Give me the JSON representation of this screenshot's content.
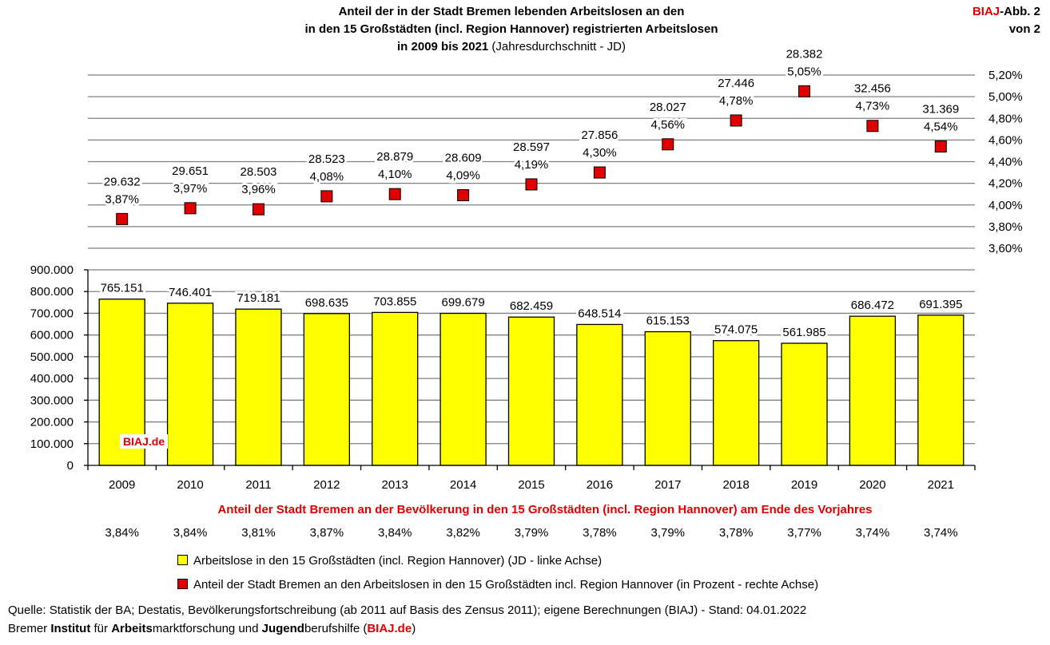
{
  "header": {
    "title_line1": "Anteil der in der Stadt Bremen lebenden Arbeitslosen an den",
    "title_line2": "in den 15 Großstädten (incl. Region Hannover) registrierten Arbeitslosen",
    "title_line3_bold": "in 2009 bis 2021",
    "title_line3_normal": " (Jahresdurchschnitt - JD)",
    "abb_brand": "BIAJ",
    "abb_label": "-Abb. 2",
    "abb_of": "von 2"
  },
  "chart_data": {
    "type": "bar",
    "categories": [
      "2009",
      "2010",
      "2011",
      "2012",
      "2013",
      "2014",
      "2015",
      "2016",
      "2017",
      "2018",
      "2019",
      "2020",
      "2021"
    ],
    "series": [
      {
        "name": "Arbeitslose in den 15 Großstädten (incl. Region Hannover) (JD - linke Achse)",
        "type": "bar",
        "axis": "left",
        "color": "#ffff00",
        "values": [
          765151,
          746401,
          719181,
          698635,
          703855,
          699679,
          682459,
          648514,
          615153,
          574075,
          561985,
          686472,
          691395
        ],
        "labels": [
          "765.151",
          "746.401",
          "719.181",
          "698.635",
          "703.855",
          "699.679",
          "682.459",
          "648.514",
          "615.153",
          "574.075",
          "561.985",
          "686.472",
          "691.395"
        ]
      },
      {
        "name": "Anteil der Stadt Bremen an den Arbeitslosen in den 15 Großstädten incl. Region Hannover (in Prozent - rechte Achse)",
        "type": "scatter",
        "axis": "right",
        "color": "#e00000",
        "values": [
          3.87,
          3.97,
          3.96,
          4.08,
          4.1,
          4.09,
          4.19,
          4.3,
          4.56,
          4.78,
          5.05,
          4.73,
          4.54
        ],
        "labels": [
          "3,87%",
          "3,97%",
          "3,96%",
          "4,08%",
          "4,10%",
          "4,09%",
          "4,19%",
          "4,30%",
          "4,56%",
          "4,78%",
          "5,05%",
          "4,73%",
          "4,54%"
        ],
        "counts": [
          "29.632",
          "29.651",
          "28.503",
          "28.523",
          "28.879",
          "28.609",
          "28.597",
          "27.856",
          "28.027",
          "27.446",
          "28.382",
          "32.456",
          "31.369"
        ]
      }
    ],
    "left_axis": {
      "ylim": [
        0,
        900000
      ],
      "ticks": [
        0,
        100000,
        200000,
        300000,
        400000,
        500000,
        600000,
        700000,
        800000,
        900000
      ],
      "tick_labels": [
        "0",
        "100.000",
        "200.000",
        "300.000",
        "400.000",
        "500.000",
        "600.000",
        "700.000",
        "800.000",
        "900.000"
      ]
    },
    "right_axis": {
      "ylim": [
        3.6,
        5.2
      ],
      "ticks": [
        3.6,
        3.8,
        4.0,
        4.2,
        4.4,
        4.6,
        4.8,
        5.0,
        5.2
      ],
      "tick_labels": [
        "3,60%",
        "3,80%",
        "4,00%",
        "4,20%",
        "4,40%",
        "4,60%",
        "4,80%",
        "5,00%",
        "5,20%"
      ]
    },
    "population_share": {
      "title": "Anteil der Stadt Bremen an der Bevölkerung in den 15 Großstädten (incl. Region Hannover) am Ende des Vorjahres",
      "values": [
        "3,84%",
        "3,84%",
        "3,81%",
        "3,87%",
        "3,84%",
        "3,82%",
        "3,79%",
        "3,78%",
        "3,79%",
        "3,78%",
        "3,77%",
        "3,74%",
        "3,74%"
      ]
    },
    "watermark": "BIAJ.de",
    "grid": true
  },
  "legend": {
    "bar_label": "Arbeitslose in den 15 Großstädten (incl. Region Hannover) (JD - linke Achse)",
    "marker_label": "Anteil der Stadt Bremen an den Arbeitslosen in den 15 Großstädten incl. Region Hannover (in Prozent - rechte Achse)"
  },
  "footer": {
    "source": "Quelle: Statistik der BA; Destatis, Bevölkerungsfortschreibung (ab 2011 auf Basis des Zensus 2011); eigene Berechnungen (BIAJ) - Stand: 04.01.2022",
    "line2_parts": [
      "Bremer ",
      "Institut",
      " für ",
      "Arbeits",
      "marktforschung und ",
      "Jugend",
      "berufshilfe (",
      "BIAJ.de",
      ")"
    ]
  },
  "colors": {
    "bar": "#ffff00",
    "marker": "#e00000",
    "accent_red": "#e00000",
    "grid": "#808080"
  }
}
